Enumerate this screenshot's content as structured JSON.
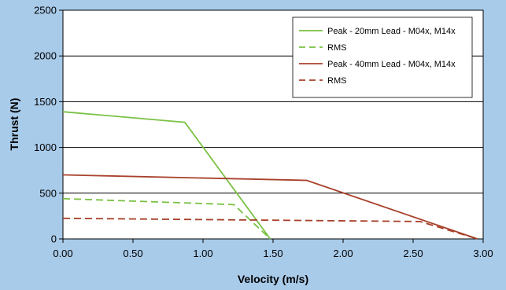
{
  "chart_data": {
    "type": "line",
    "title": "",
    "xlabel": "Velocity (m/s)",
    "ylabel": "Thrust (N)",
    "xlim": [
      0,
      3
    ],
    "ylim": [
      0,
      2500
    ],
    "x_ticks": [
      "0.00",
      "0.50",
      "1.00",
      "1.50",
      "2.00",
      "2.50",
      "3.00"
    ],
    "y_ticks": [
      "0",
      "500",
      "1000",
      "1500",
      "2000",
      "2500"
    ],
    "grid": "horizontal",
    "legend_position": "top-right",
    "series": [
      {
        "name": "Peak - 20mm Lead - M04x, M14x",
        "color": "#7ac143",
        "dash": "solid",
        "points": [
          [
            0.0,
            1390
          ],
          [
            0.87,
            1275
          ],
          [
            1.48,
            0
          ]
        ]
      },
      {
        "name": "RMS",
        "color": "#7ac143",
        "dash": "dashed",
        "points": [
          [
            0.0,
            440
          ],
          [
            1.22,
            375
          ],
          [
            1.48,
            0
          ]
        ]
      },
      {
        "name": "Peak - 40mm Lead - M04x, M14x",
        "color": "#a8412b",
        "dash": "solid",
        "points": [
          [
            0.0,
            700
          ],
          [
            1.74,
            640
          ],
          [
            2.96,
            0
          ]
        ]
      },
      {
        "name": "RMS",
        "color": "#a8412b",
        "dash": "dashed",
        "points": [
          [
            0.0,
            225
          ],
          [
            2.55,
            190
          ],
          [
            2.96,
            0
          ]
        ]
      }
    ]
  }
}
